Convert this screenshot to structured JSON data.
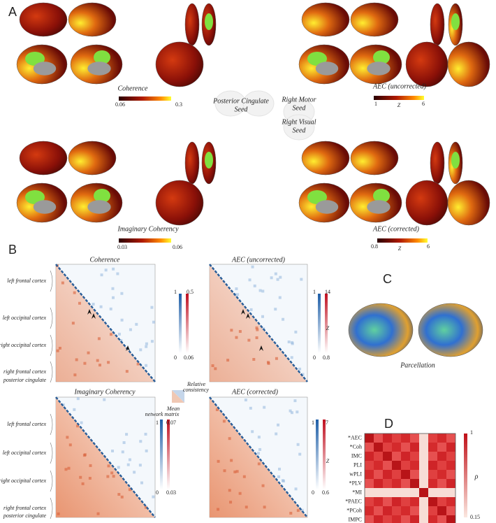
{
  "panel_labels": [
    "A",
    "B",
    "C",
    "D"
  ],
  "panel_a": {
    "maps": [
      {
        "title": "Coherence",
        "colorbar": {
          "min": 0.06,
          "max": 0.3
        }
      },
      {
        "title": "AEC (uncorrected)",
        "colorbar": {
          "min": 1,
          "max": 6,
          "unit": "Z"
        }
      },
      {
        "title": "Imaginary Coherency",
        "colorbar": {
          "min": 0.03,
          "max": 0.06
        }
      },
      {
        "title": "AEC (corrected)",
        "colorbar": {
          "min": 0.8,
          "max": 6,
          "unit": "Z"
        }
      }
    ],
    "seeds": [
      [
        "Posterior Cingulate",
        "Seed"
      ],
      [
        "Right Motor",
        "Seed"
      ],
      [
        "Right Visual",
        "Seed"
      ]
    ]
  },
  "panel_b": {
    "regions": [
      "left frontal cortex",
      "left occipital cortex",
      "right occipital cortex",
      "right frontal cortex",
      "posterior cingulate"
    ],
    "matrices": [
      {
        "title": "Coherence",
        "consistency": {
          "max": 1,
          "min": 0
        },
        "mean": {
          "max": 0.5,
          "min": 0.06
        }
      },
      {
        "title": "AEC (uncorrected)",
        "consistency": {
          "max": 1,
          "min": 0
        },
        "mean": {
          "max": 14,
          "min": 0.8,
          "unit": "Z"
        }
      },
      {
        "title": "Imaginary Coherency",
        "consistency": {
          "max": 1,
          "min": 0
        },
        "mean": {
          "max": 0.07,
          "min": 0.03
        }
      },
      {
        "title": "AEC (corrected)",
        "consistency": {
          "max": 1,
          "min": 0
        },
        "mean": {
          "max": 7,
          "min": 0.6,
          "unit": "Z"
        }
      }
    ],
    "legend": {
      "upper": [
        "Relative",
        "consistency"
      ],
      "lower": [
        "Mean",
        "network matrix"
      ]
    }
  },
  "panel_c": {
    "caption": "Parcellation"
  },
  "panel_d": {
    "rows": [
      "*AEC",
      "*Coh",
      "IMC",
      "PLI",
      "wPLI",
      "*PLV",
      "*MI",
      "*PAEC",
      "*PCoh",
      "IMPC"
    ],
    "colorbar": {
      "max": 1,
      "min": 0.15,
      "label": "ρ"
    }
  }
}
